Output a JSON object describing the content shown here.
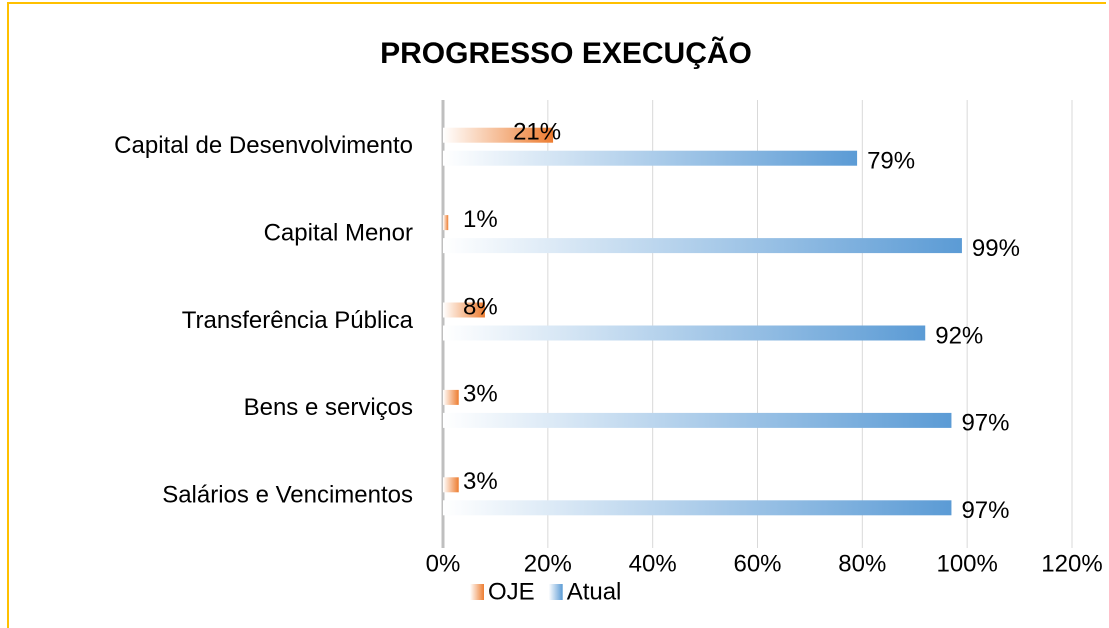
{
  "chart_data": {
    "type": "bar",
    "orientation": "horizontal",
    "title": "PROGRESSO EXECUÇÃO",
    "categories": [
      "Capital de Desenvolvimento",
      "Capital Menor",
      "Transferência Pública",
      "Bens e serviços",
      "Salários e Vencimentos"
    ],
    "series": [
      {
        "name": "OJE",
        "color": "#ED7D31",
        "values": [
          21,
          1,
          8,
          3,
          3
        ],
        "value_labels": [
          "21%",
          "1%",
          "8%",
          "3%",
          "3%"
        ]
      },
      {
        "name": "Atual",
        "color": "#5B9BD5",
        "values": [
          79,
          99,
          92,
          97,
          97
        ],
        "value_labels": [
          "79%",
          "99%",
          "92%",
          "97%",
          "97%"
        ]
      }
    ],
    "xlim": [
      0,
      120
    ],
    "xticks": [
      {
        "value": 0,
        "label": "0%"
      },
      {
        "value": 20,
        "label": "20%"
      },
      {
        "value": 40,
        "label": "40%"
      },
      {
        "value": 60,
        "label": "60%"
      },
      {
        "value": 80,
        "label": "80%"
      },
      {
        "value": 100,
        "label": "100%"
      },
      {
        "value": 120,
        "label": "120%"
      }
    ],
    "grid": true,
    "legend": "bottom"
  }
}
